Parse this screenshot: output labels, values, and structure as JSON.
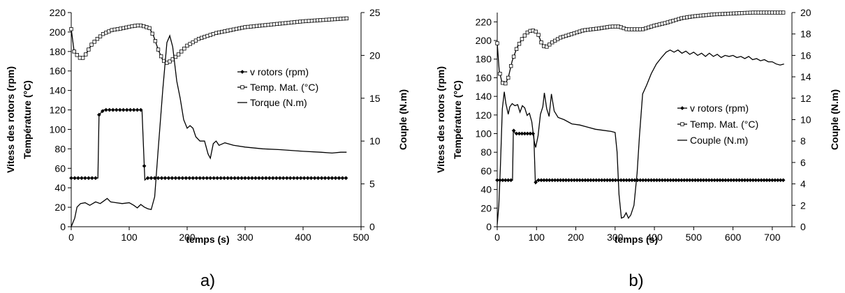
{
  "chart_data": [
    {
      "type": "line",
      "panel_label": "a)",
      "xlabel": "temps (s)",
      "ylabel_lines": [
        "Vitess des rotors (rpm)",
        "Température (°C)"
      ],
      "y2label": "Couple (N.m)",
      "xlim": [
        0,
        500
      ],
      "xticks": [
        0,
        100,
        200,
        300,
        400,
        500
      ],
      "ylim": [
        0,
        220
      ],
      "yticks": [
        0,
        20,
        40,
        60,
        80,
        100,
        120,
        140,
        160,
        180,
        200,
        220
      ],
      "y2lim": [
        0,
        25
      ],
      "y2ticks": [
        0,
        5,
        10,
        15,
        20,
        25
      ],
      "legend_position": "right",
      "series": [
        {
          "name": "v rotors (rpm)",
          "axis": "left",
          "marker": "diamond",
          "marker_step": 6,
          "points": [
            [
              0,
              50
            ],
            [
              46,
              50
            ],
            [
              48,
              115
            ],
            [
              56,
              120
            ],
            [
              122,
              120
            ],
            [
              127,
              48
            ],
            [
              131,
              50
            ],
            [
              475,
              50
            ]
          ]
        },
        {
          "name": "Temp. Mat. (°C)",
          "axis": "left",
          "marker": "square",
          "marker_step": 5,
          "points": [
            [
              0,
              203
            ],
            [
              5,
              180
            ],
            [
              12,
              175
            ],
            [
              18,
              172
            ],
            [
              25,
              177
            ],
            [
              35,
              187
            ],
            [
              45,
              193
            ],
            [
              55,
              198
            ],
            [
              70,
              202
            ],
            [
              90,
              204
            ],
            [
              105,
              206
            ],
            [
              118,
              207
            ],
            [
              125,
              206
            ],
            [
              135,
              204
            ],
            [
              142,
              196
            ],
            [
              150,
              182
            ],
            [
              158,
              171
            ],
            [
              166,
              168
            ],
            [
              175,
              172
            ],
            [
              185,
              177
            ],
            [
              200,
              186
            ],
            [
              220,
              193
            ],
            [
              250,
              199
            ],
            [
              300,
              205
            ],
            [
              350,
              208
            ],
            [
              400,
              211
            ],
            [
              450,
              213
            ],
            [
              475,
              214
            ]
          ]
        },
        {
          "name": "Torque (N.m)",
          "axis": "right",
          "marker": "none",
          "points": [
            [
              0,
              0
            ],
            [
              6,
              1
            ],
            [
              10,
              2.3
            ],
            [
              16,
              2.7
            ],
            [
              24,
              2.8
            ],
            [
              32,
              2.5
            ],
            [
              42,
              2.9
            ],
            [
              50,
              2.7
            ],
            [
              56,
              3.0
            ],
            [
              62,
              3.3
            ],
            [
              68,
              2.9
            ],
            [
              78,
              2.8
            ],
            [
              88,
              2.7
            ],
            [
              100,
              2.8
            ],
            [
              108,
              2.5
            ],
            [
              114,
              2.2
            ],
            [
              120,
              2.6
            ],
            [
              126,
              2.3
            ],
            [
              132,
              2.1
            ],
            [
              138,
              2.0
            ],
            [
              144,
              3.5
            ],
            [
              150,
              9
            ],
            [
              158,
              16
            ],
            [
              165,
              21.5
            ],
            [
              170,
              22.3
            ],
            [
              175,
              21
            ],
            [
              182,
              17
            ],
            [
              188,
              15
            ],
            [
              194,
              12.5
            ],
            [
              200,
              11.5
            ],
            [
              205,
              11.8
            ],
            [
              210,
              11.5
            ],
            [
              215,
              10.5
            ],
            [
              222,
              10
            ],
            [
              230,
              10
            ],
            [
              236,
              8.5
            ],
            [
              240,
              8
            ],
            [
              245,
              9.7
            ],
            [
              250,
              10
            ],
            [
              255,
              9.5
            ],
            [
              265,
              9.8
            ],
            [
              280,
              9.5
            ],
            [
              300,
              9.3
            ],
            [
              330,
              9.1
            ],
            [
              360,
              9.0
            ],
            [
              400,
              8.8
            ],
            [
              430,
              8.7
            ],
            [
              450,
              8.6
            ],
            [
              465,
              8.7
            ],
            [
              475,
              8.7
            ]
          ]
        }
      ]
    },
    {
      "type": "line",
      "panel_label": "b)",
      "xlabel": "temps (s)",
      "ylabel_lines": [
        "Vitess des rotors (rpm)",
        "Température (°C)"
      ],
      "y2label": "Couple (N.m)",
      "xlim": [
        0,
        750
      ],
      "xticks": [
        0,
        100,
        200,
        300,
        400,
        500,
        600,
        700
      ],
      "ylim": [
        0,
        230
      ],
      "yticks": [
        0,
        20,
        40,
        60,
        80,
        100,
        120,
        140,
        160,
        180,
        200,
        220
      ],
      "y2lim": [
        0,
        20
      ],
      "y2ticks": [
        0,
        2,
        4,
        6,
        8,
        10,
        12,
        14,
        16,
        18,
        20
      ],
      "legend_position": "right",
      "series": [
        {
          "name": "v rotors (rpm)",
          "axis": "left",
          "marker": "diamond",
          "marker_step": 7,
          "points": [
            [
              0,
              50
            ],
            [
              39,
              50
            ],
            [
              41,
              104
            ],
            [
              46,
              100
            ],
            [
              93,
              100
            ],
            [
              97,
              47
            ],
            [
              101,
              50
            ],
            [
              730,
              50
            ]
          ]
        },
        {
          "name": "Temp. Mat. (°C)",
          "axis": "left",
          "marker": "square",
          "marker_step": 7,
          "points": [
            [
              0,
              197
            ],
            [
              5,
              168
            ],
            [
              12,
              155
            ],
            [
              20,
              153
            ],
            [
              28,
              160
            ],
            [
              38,
              178
            ],
            [
              50,
              192
            ],
            [
              65,
              203
            ],
            [
              80,
              210
            ],
            [
              95,
              211
            ],
            [
              105,
              206
            ],
            [
              112,
              198
            ],
            [
              118,
              194
            ],
            [
              125,
              193
            ],
            [
              140,
              198
            ],
            [
              160,
              203
            ],
            [
              190,
              207
            ],
            [
              220,
              211
            ],
            [
              260,
              213
            ],
            [
              290,
              215
            ],
            [
              310,
              215
            ],
            [
              330,
              212
            ],
            [
              350,
              212
            ],
            [
              370,
              212
            ],
            [
              400,
              216
            ],
            [
              430,
              219
            ],
            [
              470,
              224
            ],
            [
              500,
              226
            ],
            [
              550,
              228
            ],
            [
              600,
              229
            ],
            [
              650,
              230
            ],
            [
              700,
              230
            ],
            [
              730,
              230
            ]
          ]
        },
        {
          "name": "Couple (N.m)",
          "axis": "right",
          "marker": "none",
          "points": [
            [
              0,
              0.2
            ],
            [
              4,
              2
            ],
            [
              8,
              5.5
            ],
            [
              13,
              11
            ],
            [
              18,
              12.6
            ],
            [
              22,
              11.5
            ],
            [
              28,
              10.5
            ],
            [
              32,
              11.2
            ],
            [
              38,
              11.5
            ],
            [
              45,
              11.3
            ],
            [
              52,
              11.4
            ],
            [
              58,
              10.7
            ],
            [
              64,
              11.3
            ],
            [
              70,
              11.1
            ],
            [
              76,
              10.4
            ],
            [
              82,
              10.6
            ],
            [
              88,
              9.8
            ],
            [
              94,
              8.0
            ],
            [
              98,
              7.4
            ],
            [
              104,
              8.5
            ],
            [
              110,
              10.5
            ],
            [
              116,
              11.2
            ],
            [
              120,
              12.5
            ],
            [
              126,
              11
            ],
            [
              132,
              10.3
            ],
            [
              138,
              12.4
            ],
            [
              145,
              10.8
            ],
            [
              155,
              10.2
            ],
            [
              170,
              10.0
            ],
            [
              190,
              9.6
            ],
            [
              210,
              9.5
            ],
            [
              230,
              9.3
            ],
            [
              250,
              9.1
            ],
            [
              270,
              9.0
            ],
            [
              290,
              8.9
            ],
            [
              300,
              8.8
            ],
            [
              305,
              7.0
            ],
            [
              310,
              3.0
            ],
            [
              316,
              0.8
            ],
            [
              322,
              0.9
            ],
            [
              328,
              1.3
            ],
            [
              334,
              0.8
            ],
            [
              340,
              1.1
            ],
            [
              348,
              2.0
            ],
            [
              356,
              5.0
            ],
            [
              362,
              8.5
            ],
            [
              370,
              12.4
            ],
            [
              380,
              13.2
            ],
            [
              392,
              14.3
            ],
            [
              405,
              15.2
            ],
            [
              418,
              15.8
            ],
            [
              430,
              16.3
            ],
            [
              440,
              16.5
            ],
            [
              450,
              16.3
            ],
            [
              460,
              16.5
            ],
            [
              470,
              16.2
            ],
            [
              480,
              16.4
            ],
            [
              490,
              16.1
            ],
            [
              500,
              16.3
            ],
            [
              510,
              16.0
            ],
            [
              520,
              16.2
            ],
            [
              530,
              15.9
            ],
            [
              540,
              16.2
            ],
            [
              550,
              15.9
            ],
            [
              560,
              16.1
            ],
            [
              570,
              15.8
            ],
            [
              580,
              16.0
            ],
            [
              590,
              15.9
            ],
            [
              600,
              16.0
            ],
            [
              610,
              15.8
            ],
            [
              620,
              15.9
            ],
            [
              630,
              15.7
            ],
            [
              640,
              15.9
            ],
            [
              650,
              15.6
            ],
            [
              660,
              15.7
            ],
            [
              670,
              15.5
            ],
            [
              680,
              15.6
            ],
            [
              690,
              15.4
            ],
            [
              700,
              15.4
            ],
            [
              710,
              15.2
            ],
            [
              720,
              15.1
            ],
            [
              730,
              15.2
            ]
          ]
        }
      ]
    }
  ]
}
